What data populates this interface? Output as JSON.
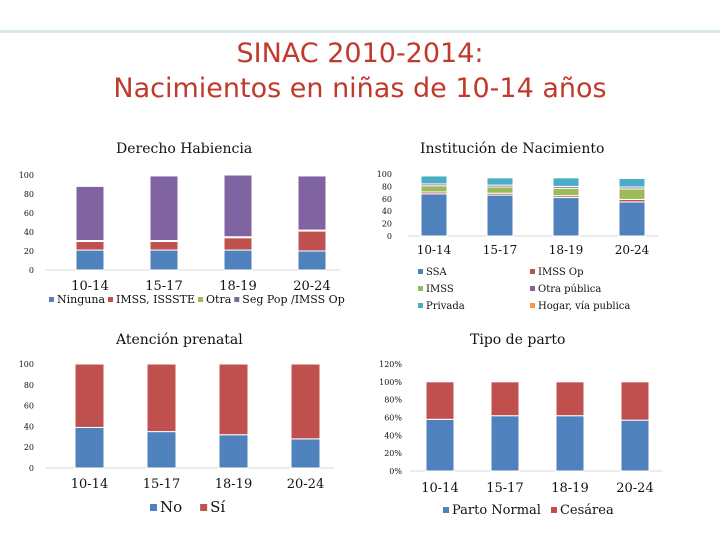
{
  "title_line1": "SINAC 2010-2014:",
  "title_line2": "Nacimientos en niñas de 10-14 años",
  "colors": {
    "title": "#c0392b",
    "blue": "#4f81bd",
    "red": "#c0504d",
    "green": "#9bbb59",
    "purple": "#8064a2",
    "aqua": "#4bacc6",
    "orange": "#f79646"
  },
  "chart_data": [
    {
      "type": "bar",
      "stacked": true,
      "title": "Derecho Habiencia",
      "categories": [
        "10-14",
        "15-17",
        "18-19",
        "20-24"
      ],
      "ylim": [
        0,
        100
      ],
      "yticks": [
        "0",
        "20",
        "40",
        "60",
        "80",
        "100"
      ],
      "series": [
        {
          "name": "Ninguna",
          "color": "#4f81bd",
          "values": [
            21,
            21,
            21,
            20
          ]
        },
        {
          "name": "IMSS, ISSSTE",
          "color": "#c0504d",
          "values": [
            9,
            9,
            13,
            21
          ]
        },
        {
          "name": "Otra",
          "color": "#9bbb59",
          "values": [
            1,
            1,
            1,
            1
          ]
        },
        {
          "name": "Seg Pop /IMSS Op",
          "color": "#8064a2",
          "values": [
            57,
            68,
            65,
            57
          ]
        }
      ],
      "legend_position": "bottom"
    },
    {
      "type": "bar",
      "stacked": true,
      "title": "Institución de Nacimiento",
      "categories": [
        "10-14",
        "15-17",
        "18-19",
        "20-24"
      ],
      "ylim": [
        0,
        100
      ],
      "yticks": [
        "0",
        "20",
        "40",
        "60",
        "80",
        "100"
      ],
      "series": [
        {
          "name": "SSA",
          "color": "#4f81bd",
          "values": [
            68,
            66,
            62,
            55
          ]
        },
        {
          "name": "IMSS Op",
          "color": "#c0504d",
          "values": [
            3,
            3,
            3,
            4
          ]
        },
        {
          "name": "IMSS",
          "color": "#9bbb59",
          "values": [
            10,
            10,
            12,
            17
          ]
        },
        {
          "name": "Otra pública",
          "color": "#8064a2",
          "values": [
            3,
            3,
            3,
            3
          ]
        },
        {
          "name": "Privada",
          "color": "#4bacc6",
          "values": [
            13,
            12,
            14,
            14
          ]
        },
        {
          "name": "Hogar, vía publica",
          "color": "#f79646",
          "values": [
            1,
            1,
            1,
            1
          ]
        }
      ],
      "legend_position": "bottom"
    },
    {
      "type": "bar",
      "stacked": true,
      "title": "Atención prenatal",
      "categories": [
        "10-14",
        "15-17",
        "18-19",
        "20-24"
      ],
      "ylim": [
        0,
        100
      ],
      "yticks": [
        "0",
        "20",
        "40",
        "60",
        "80",
        "100"
      ],
      "series": [
        {
          "name": "No",
          "color": "#4f81bd",
          "values": [
            39,
            35,
            32,
            28
          ]
        },
        {
          "name": "Sí",
          "color": "#c0504d",
          "values": [
            61,
            65,
            68,
            72
          ]
        }
      ],
      "legend_position": "bottom"
    },
    {
      "type": "bar",
      "stacked": true,
      "title": "Tipo de parto",
      "categories": [
        "10-14",
        "15-17",
        "18-19",
        "20-24"
      ],
      "ylim": [
        0,
        120
      ],
      "yticks": [
        "0%",
        "20%",
        "40%",
        "60%",
        "80%",
        "100%",
        "120%"
      ],
      "series": [
        {
          "name": "Parto Normal",
          "color": "#4f81bd",
          "values": [
            58,
            62,
            62,
            57
          ]
        },
        {
          "name": "Cesárea",
          "color": "#c0504d",
          "values": [
            42,
            38,
            38,
            43
          ]
        }
      ],
      "legend_position": "bottom"
    }
  ]
}
